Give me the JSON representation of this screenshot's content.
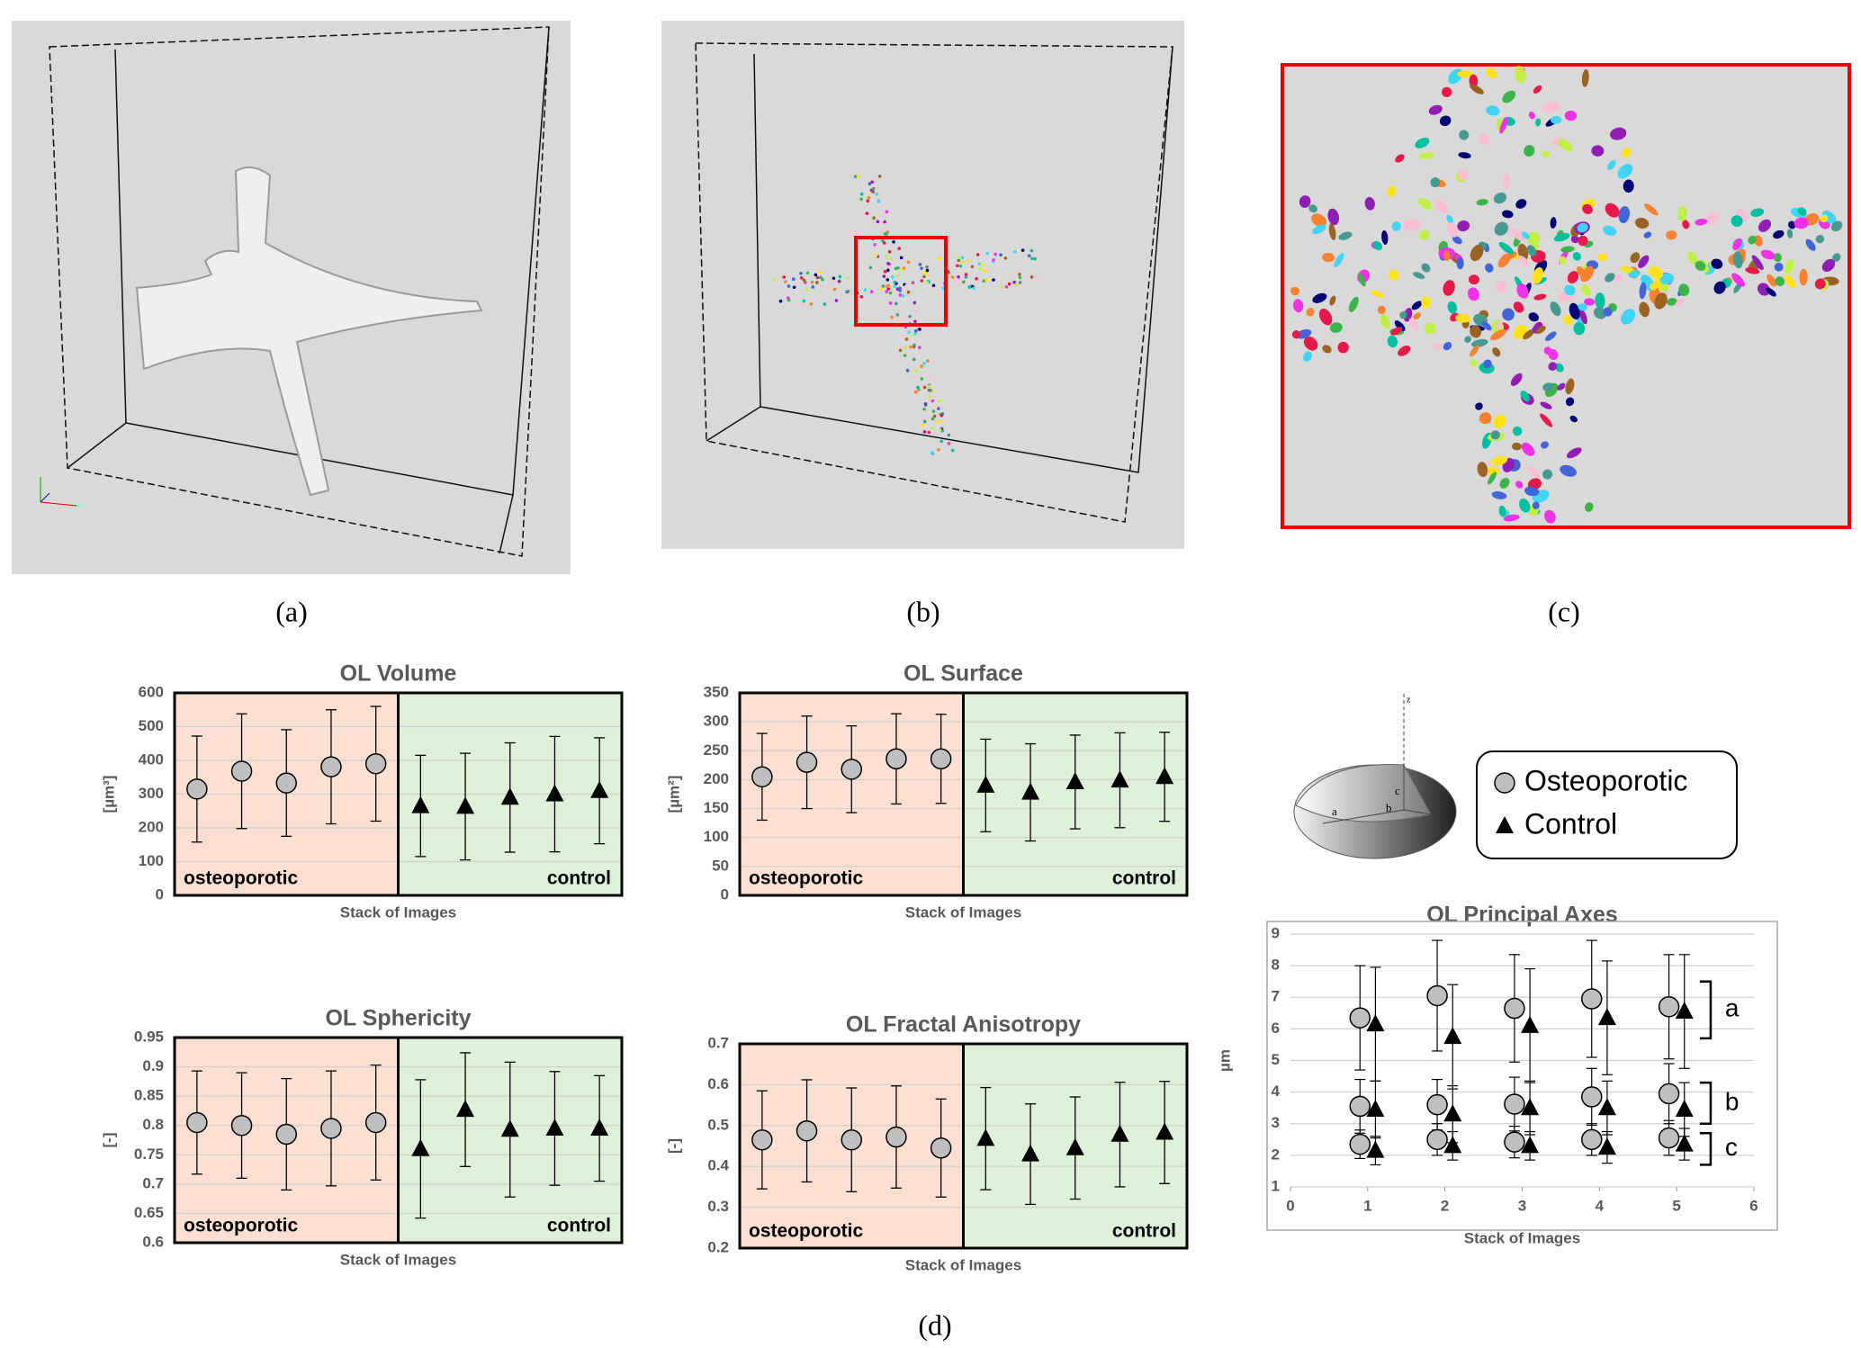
{
  "panel_labels": [
    "(a)",
    "(b)",
    "(c)",
    "(d)"
  ],
  "chart_data": [
    {
      "type": "errorbar",
      "title": "OL Volume",
      "xlabel": "Stack of Images",
      "ylabel": "[µm³]",
      "ylim": [
        0,
        600
      ],
      "yticks": [
        0,
        100,
        200,
        300,
        400,
        500,
        600
      ],
      "grid": true,
      "regions": [
        {
          "label": "osteoporotic",
          "color": "#fbe0d2"
        },
        {
          "label": "control",
          "color": "#dff0d8"
        }
      ],
      "series": [
        {
          "marker": "circle",
          "color": "#bfbfbf",
          "values": [
            315,
            368,
            333,
            381,
            390
          ],
          "errors": [
            157,
            170,
            158,
            169,
            170
          ]
        },
        {
          "marker": "triangle",
          "color": "#000000",
          "values": [
            265,
            263,
            290,
            300,
            310
          ],
          "errors": [
            150,
            158,
            162,
            171,
            157
          ]
        }
      ]
    },
    {
      "type": "errorbar",
      "title": "OL Surface",
      "xlabel": "Stack of Images",
      "ylabel": "[µm²]",
      "ylim": [
        0,
        350
      ],
      "yticks": [
        0,
        50,
        100,
        150,
        200,
        250,
        300,
        350
      ],
      "grid": true,
      "regions": [
        {
          "label": "osteoporotic",
          "color": "#fbe0d2"
        },
        {
          "label": "control",
          "color": "#dff0d8"
        }
      ],
      "series": [
        {
          "marker": "circle",
          "color": "#bfbfbf",
          "values": [
            205,
            230,
            218,
            236,
            236
          ],
          "errors": [
            75,
            80,
            75,
            78,
            77
          ]
        },
        {
          "marker": "triangle",
          "color": "#000000",
          "values": [
            190,
            178,
            196,
            199,
            205
          ],
          "errors": [
            80,
            84,
            81,
            82,
            77
          ]
        }
      ]
    },
    {
      "type": "errorbar",
      "title": "OL Sphericity",
      "xlabel": "Stack of Images",
      "ylabel": "[-]",
      "ylim": [
        0.6,
        0.95
      ],
      "yticks": [
        0.6,
        0.65,
        0.7,
        0.75,
        0.8,
        0.85,
        0.9,
        0.95
      ],
      "grid": true,
      "regions": [
        {
          "label": "osteoporotic",
          "color": "#fbe0d2"
        },
        {
          "label": "control",
          "color": "#dff0d8"
        }
      ],
      "series": [
        {
          "marker": "circle",
          "color": "#bfbfbf",
          "values": [
            0.805,
            0.8,
            0.785,
            0.795,
            0.805
          ],
          "errors": [
            0.088,
            0.09,
            0.095,
            0.098,
            0.098
          ]
        },
        {
          "marker": "triangle",
          "color": "#000000",
          "values": [
            0.76,
            0.827,
            0.793,
            0.795,
            0.795
          ],
          "errors": [
            0.118,
            0.097,
            0.115,
            0.097,
            0.09
          ]
        }
      ]
    },
    {
      "type": "errorbar",
      "title": "OL Fractal Anisotropy",
      "xlabel": "Stack of Images",
      "ylabel": "[-]",
      "ylim": [
        0.2,
        0.7
      ],
      "yticks": [
        0.2,
        0.3,
        0.4,
        0.5,
        0.6,
        0.7
      ],
      "grid": true,
      "regions": [
        {
          "label": "osteoporotic",
          "color": "#fbe0d2"
        },
        {
          "label": "control",
          "color": "#dff0d8"
        }
      ],
      "series": [
        {
          "marker": "circle",
          "color": "#bfbfbf",
          "values": [
            0.465,
            0.487,
            0.465,
            0.472,
            0.445
          ],
          "errors": [
            0.12,
            0.125,
            0.127,
            0.125,
            0.12
          ]
        },
        {
          "marker": "triangle",
          "color": "#000000",
          "values": [
            0.468,
            0.43,
            0.445,
            0.478,
            0.483
          ],
          "errors": [
            0.125,
            0.123,
            0.125,
            0.128,
            0.125
          ]
        }
      ]
    },
    {
      "type": "scatter",
      "title": "OL Principal Axes",
      "xlabel": "Stack of Images",
      "ylabel": "µm",
      "xlim": [
        0,
        6
      ],
      "xticks": [
        0,
        1,
        2,
        3,
        4,
        5,
        6
      ],
      "ylim": [
        1,
        9
      ],
      "yticks": [
        1,
        2,
        3,
        4,
        5,
        6,
        7,
        8,
        9
      ],
      "grid": true,
      "bracket_labels": [
        "a",
        "b",
        "c"
      ],
      "diagram_labels": [
        "a",
        "b",
        "c",
        "z"
      ],
      "series": [
        {
          "name": "Osteoporotic",
          "marker": "circle",
          "color": "#bfbfbf",
          "x": [
            0.9,
            1.9,
            2.9,
            3.9,
            4.9
          ],
          "groups": [
            {
              "values": [
                6.35,
                7.05,
                6.65,
                6.95,
                6.7
              ],
              "errors": [
                1.65,
                1.75,
                1.7,
                1.85,
                1.65
              ]
            },
            {
              "values": [
                3.55,
                3.6,
                3.62,
                3.85,
                3.95
              ],
              "errors": [
                0.85,
                0.8,
                0.85,
                0.9,
                0.95
              ]
            },
            {
              "values": [
                2.35,
                2.5,
                2.42,
                2.5,
                2.55
              ],
              "errors": [
                0.45,
                0.5,
                0.5,
                0.5,
                0.55
              ]
            }
          ]
        },
        {
          "name": "Control",
          "marker": "triangle",
          "color": "#000000",
          "x": [
            1.1,
            2.1,
            3.1,
            4.1,
            5.1
          ],
          "groups": [
            {
              "values": [
                6.15,
                5.75,
                6.1,
                6.35,
                6.55
              ],
              "errors": [
                1.8,
                1.65,
                1.8,
                1.8,
                1.8
              ]
            },
            {
              "values": [
                3.45,
                3.3,
                3.5,
                3.5,
                3.45
              ],
              "errors": [
                0.9,
                0.9,
                0.85,
                0.85,
                0.85
              ]
            },
            {
              "values": [
                2.15,
                2.3,
                2.3,
                2.25,
                2.35
              ],
              "errors": [
                0.45,
                0.45,
                0.45,
                0.5,
                0.5
              ]
            }
          ]
        }
      ]
    }
  ]
}
